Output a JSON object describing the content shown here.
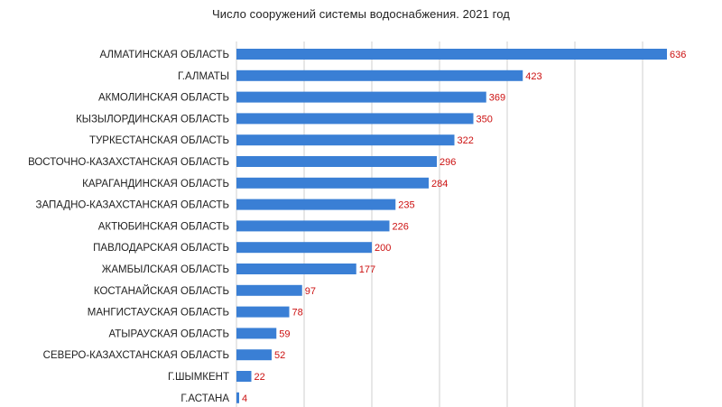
{
  "chart_data": {
    "type": "bar",
    "orientation": "horizontal",
    "title": "Число сооружений системы водоснабжения. 2021 год",
    "xlabel": "",
    "ylabel": "",
    "categories": [
      "АЛМАТИНСКАЯ ОБЛАСТЬ",
      "Г.АЛМАТЫ",
      "АКМОЛИНСКАЯ ОБЛАСТЬ",
      "КЫЗЫЛОРДИНСКАЯ ОБЛАСТЬ",
      "ТУРКЕСТАНСКАЯ ОБЛАСТЬ",
      "ВОСТОЧНО-КАЗАХСТАНСКАЯ ОБЛАСТЬ",
      "КАРАГАНДИНСКАЯ ОБЛАСТЬ",
      "ЗАПАДНО-КАЗАХСТАНСКАЯ ОБЛАСТЬ",
      "АКТЮБИНСКАЯ ОБЛАСТЬ",
      "ПАВЛОДАРСКАЯ ОБЛАСТЬ",
      "ЖАМБЫЛСКАЯ ОБЛАСТЬ",
      "КОСТАНАЙСКАЯ ОБЛАСТЬ",
      "МАНГИСТАУСКАЯ ОБЛАСТЬ",
      "АТЫРАУСКАЯ ОБЛАСТЬ",
      "СЕВЕРО-КАЗАХСТАНСКАЯ ОБЛАСТЬ",
      "Г.ШЫМКЕНТ",
      "Г.АСТАНА"
    ],
    "values": [
      636,
      423,
      369,
      350,
      322,
      296,
      284,
      235,
      226,
      200,
      177,
      97,
      78,
      59,
      52,
      22,
      4
    ],
    "xlim": [
      0,
      650
    ],
    "grid": true,
    "legend": "none",
    "colors": {
      "bar": "#3a7fd5",
      "value_label": "#cc1111",
      "grid": "#cfcfcf",
      "text": "#222222"
    }
  }
}
